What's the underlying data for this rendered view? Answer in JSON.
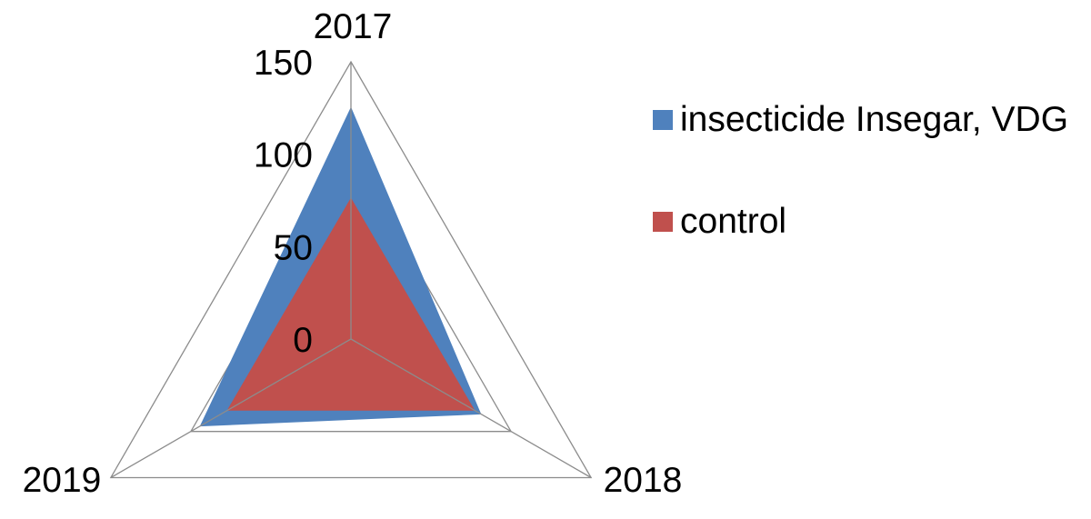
{
  "chart_data": {
    "type": "radar",
    "categories": [
      "2017",
      "2018",
      "2019"
    ],
    "rlim": [
      0,
      150
    ],
    "ticks": [
      "0",
      "50",
      "100",
      "150"
    ],
    "series": [
      {
        "name": "insecticide Insegar, VDG",
        "values": [
          125,
          81,
          94
        ],
        "color": "#4f81bd"
      },
      {
        "name": "control",
        "values": [
          76,
          77,
          77
        ],
        "color": "#c0504d"
      }
    ],
    "legend_position": "right",
    "grid": true
  }
}
